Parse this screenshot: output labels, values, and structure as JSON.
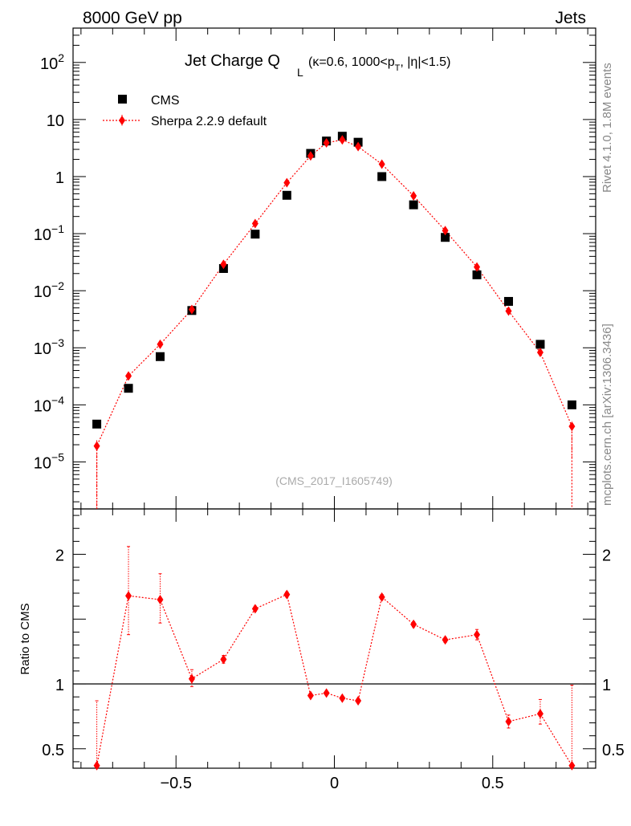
{
  "header": {
    "left_label": "8000 GeV pp",
    "right_label": "Jets"
  },
  "side_labels": {
    "rivet": "Rivet 4.1.0,  1.8M events",
    "mcplots": "mcplots.cern.ch [arXiv:1306.3436]"
  },
  "chart_data": {
    "type": "scatter",
    "title": {
      "main": "Jet Charge Q",
      "main_sub": "L",
      "cut_prefix": "(κ=0.6, 1000<p",
      "cut_sub": "T",
      "cut_suffix": ", |η|<1.5)"
    },
    "analysis_tag": "(CMS_2017_I1605749)",
    "xlim": [
      -0.825,
      0.825
    ],
    "x_ticks": [
      {
        "value": -0.5,
        "label": "−0.5"
      },
      {
        "value": 0,
        "label": "0"
      },
      {
        "value": 0.5,
        "label": "0.5"
      }
    ],
    "main_panel": {
      "yscale": "log",
      "ylim": [
        1.5e-06,
        400
      ],
      "y_ticks": [
        {
          "value": 1e-05,
          "base": "10",
          "exp": "−5"
        },
        {
          "value": 0.0001,
          "base": "10",
          "exp": "−4"
        },
        {
          "value": 0.001,
          "base": "10",
          "exp": "−3"
        },
        {
          "value": 0.01,
          "base": "10",
          "exp": "−2"
        },
        {
          "value": 0.1,
          "base": "10",
          "exp": "−1"
        },
        {
          "value": 1,
          "base": "1",
          "exp": ""
        },
        {
          "value": 10,
          "base": "10",
          "exp": ""
        },
        {
          "value": 100,
          "base": "10",
          "exp": "2"
        }
      ]
    },
    "ratio_panel": {
      "ylabel": "Ratio to CMS",
      "ylim": [
        0.35,
        2.35
      ],
      "y_ticks": [
        {
          "value": 0.5,
          "label": "0.5"
        },
        {
          "value": 1,
          "label": "1"
        },
        {
          "value": 2,
          "label": "2"
        }
      ],
      "reference": 1
    },
    "x": [
      -0.75,
      -0.65,
      -0.55,
      -0.45,
      -0.35,
      -0.25,
      -0.15,
      -0.075,
      -0.025,
      0.025,
      0.075,
      0.15,
      0.25,
      0.35,
      0.45,
      0.55,
      0.65,
      0.75
    ],
    "series": [
      {
        "name": "CMS",
        "marker": "square",
        "color": "#000000",
        "values": [
          4.6e-05,
          0.000195,
          0.0007,
          0.0045,
          0.0245,
          0.098,
          0.47,
          2.55,
          4.2,
          5.1,
          4.0,
          1.0,
          0.32,
          0.086,
          0.019,
          0.0065,
          0.00115,
          0.0001
        ]
      },
      {
        "name": "Sherpa 2.2.9 default",
        "marker": "diamond",
        "line": "dotted",
        "color": "#ff0000",
        "values": [
          1.9e-05,
          0.00032,
          0.00115,
          0.0047,
          0.029,
          0.15,
          0.78,
          2.3,
          3.9,
          4.4,
          3.35,
          1.65,
          0.46,
          0.113,
          0.026,
          0.0044,
          0.00083,
          4.2e-05
        ],
        "errors_low": [
          1.9e-05,
          5e-05,
          0.0001,
          0.0003,
          0.001,
          0.004,
          0.01,
          0.05,
          0.05,
          0.05,
          0.05,
          0.03,
          0.01,
          0.003,
          0.001,
          0.0003,
          0.0001,
          3e-05
        ],
        "errors_high": [
          5e-06,
          5e-05,
          0.0001,
          0.0003,
          0.001,
          0.004,
          0.01,
          0.05,
          0.05,
          0.05,
          0.05,
          0.03,
          0.01,
          0.003,
          0.001,
          0.0003,
          0.0001,
          1e-05
        ],
        "ratio": [
          0.37,
          1.68,
          1.65,
          1.04,
          1.19,
          1.58,
          1.69,
          0.91,
          0.93,
          0.89,
          0.87,
          1.67,
          1.46,
          1.34,
          1.38,
          0.71,
          0.77,
          0.37
        ],
        "ratio_err_low": [
          0.02,
          0.3,
          0.18,
          0.06,
          0.03,
          0.02,
          0.02,
          0.01,
          0.01,
          0.01,
          0.01,
          0.02,
          0.02,
          0.02,
          0.04,
          0.05,
          0.08,
          0.02
        ],
        "ratio_err_high": [
          0.5,
          0.38,
          0.2,
          0.07,
          0.03,
          0.02,
          0.02,
          0.01,
          0.01,
          0.01,
          0.01,
          0.02,
          0.02,
          0.02,
          0.04,
          0.05,
          0.11,
          0.62
        ]
      }
    ],
    "legend": {
      "placement": "top-left",
      "entries": [
        "CMS",
        "Sherpa 2.2.9 default"
      ]
    }
  }
}
